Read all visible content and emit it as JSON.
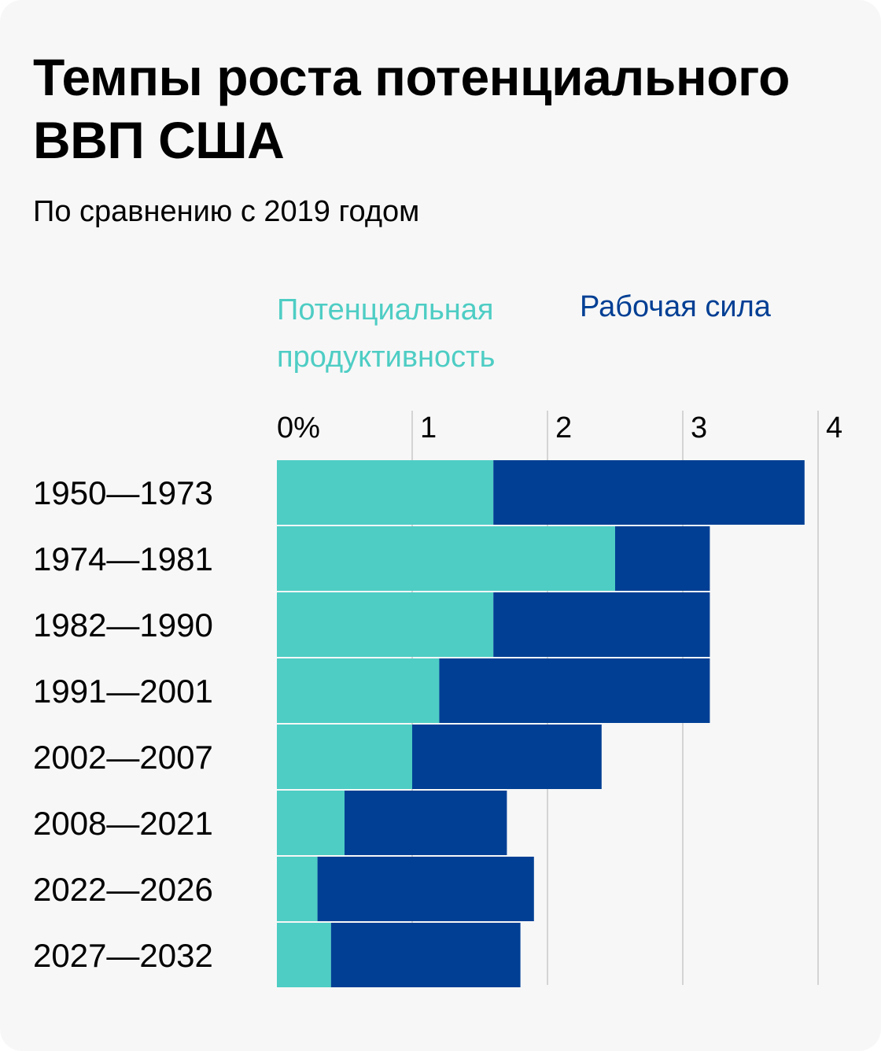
{
  "title": "Темпы роста потенциального ВВП США",
  "subtitle": "По сравнению с 2019 годом",
  "colors": {
    "productivity": "#4ecdc4",
    "labor": "#003f94",
    "grid": "#d4d4d4",
    "background": "#f7f7f7"
  },
  "chart_data": {
    "type": "bar",
    "orientation": "horizontal",
    "stacked": true,
    "title": "Темпы роста потенциального ВВП США",
    "subtitle": "По сравнению с 2019 годом",
    "xlabel": "",
    "ylabel": "",
    "xlim": [
      0,
      4
    ],
    "ticks": [
      {
        "value": 0,
        "label": "0%"
      },
      {
        "value": 1,
        "label": "1"
      },
      {
        "value": 2,
        "label": "2"
      },
      {
        "value": 3,
        "label": "3"
      },
      {
        "value": 4,
        "label": "4"
      }
    ],
    "grid": true,
    "legend_position": "top",
    "categories": [
      "1950—1973",
      "1974—1981",
      "1982—1990",
      "1991—2001",
      "2002—2007",
      "2008—2021",
      "2022—2026",
      "2027—2032"
    ],
    "series": [
      {
        "name": "Потенциальная продуктивность",
        "values": [
          1.6,
          2.5,
          1.6,
          1.2,
          1.0,
          0.5,
          0.3,
          0.4
        ]
      },
      {
        "name": "Рабочая сила",
        "values": [
          2.3,
          0.7,
          1.6,
          2.0,
          1.4,
          1.2,
          1.6,
          1.4
        ]
      }
    ]
  }
}
